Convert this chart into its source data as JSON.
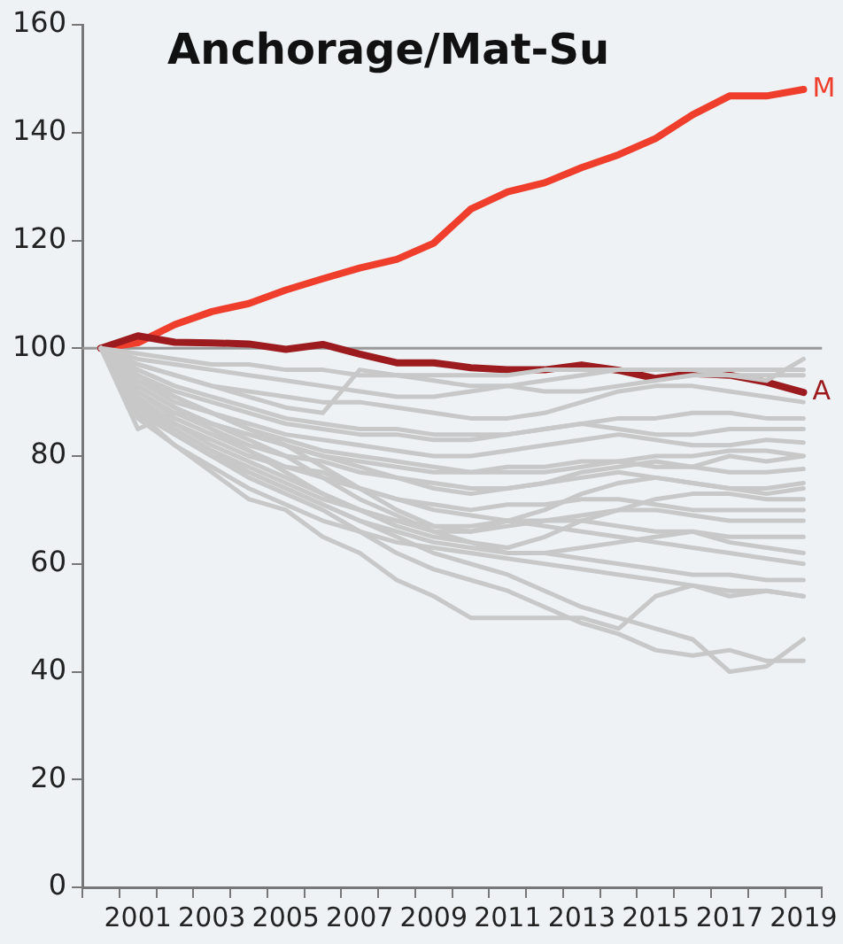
{
  "chart_data": {
    "type": "line",
    "title": "Anchorage/Mat-Su",
    "categories": [
      null,
      "2001",
      null,
      "2003",
      null,
      "2005",
      null,
      "2007",
      null,
      "2009",
      null,
      "2011",
      null,
      "2013",
      null,
      "2015",
      null,
      "2017",
      null,
      "2019"
    ],
    "ylim": [
      0,
      160
    ],
    "yticks": [
      0,
      20,
      40,
      60,
      80,
      100,
      120,
      140,
      160
    ],
    "grid": false,
    "legend": false,
    "marker": "none",
    "ref_lines": [
      {
        "axis": "y",
        "value": 100,
        "color": "#999999"
      }
    ],
    "series": [
      {
        "color": "#c8c8c8",
        "values": [
          100,
          98,
          97,
          96,
          95,
          94,
          93,
          92,
          91,
          91,
          92,
          93,
          94,
          95,
          96,
          96,
          96,
          95,
          94,
          98
        ]
      },
      {
        "color": "#c8c8c8",
        "values": [
          100,
          99,
          98,
          97,
          97,
          96,
          96,
          95,
          95,
          95,
          95,
          95,
          96,
          96,
          96,
          96,
          96,
          96,
          96,
          96
        ]
      },
      {
        "color": "#c8c8c8",
        "values": [
          100,
          97,
          95,
          93,
          91,
          89,
          88,
          96,
          95,
          94,
          93,
          93,
          92,
          92,
          93,
          94,
          95,
          95,
          95,
          95
        ]
      },
      {
        "color": "#c8c8c8",
        "values": [
          100,
          97,
          95,
          93,
          92,
          91,
          90,
          90,
          89,
          88,
          87,
          87,
          88,
          90,
          92,
          93,
          93,
          92,
          91,
          90
        ]
      },
      {
        "color": "#c8c8c8",
        "values": [
          100,
          95,
          92,
          90,
          88,
          86,
          85,
          84,
          84,
          83,
          83,
          84,
          85,
          86,
          85,
          84,
          84,
          85,
          85,
          85
        ]
      },
      {
        "color": "#c8c8c8",
        "values": [
          100,
          94,
          90,
          88,
          86,
          84,
          83,
          82,
          81,
          80,
          80,
          81,
          82,
          83,
          84,
          83,
          82,
          82,
          83,
          82.5
        ]
      },
      {
        "color": "#c8c8c8",
        "values": [
          100,
          93,
          89,
          86,
          84,
          82,
          80,
          79,
          78,
          77,
          77,
          78,
          78,
          79,
          79,
          78,
          78,
          77,
          77,
          77.6
        ]
      },
      {
        "color": "#c8c8c8",
        "values": [
          100,
          92,
          88,
          85,
          82,
          80,
          79,
          77,
          76,
          75,
          74,
          74,
          75,
          76,
          77,
          76,
          75,
          74,
          74,
          75
        ]
      },
      {
        "color": "#c8c8c8",
        "values": [
          100,
          94,
          91,
          88,
          85,
          82,
          78,
          74,
          70,
          67,
          66,
          68,
          70,
          73,
          75,
          76,
          75,
          74,
          73,
          74
        ]
      },
      {
        "color": "#c8c8c8",
        "values": [
          100,
          91,
          86,
          83,
          80,
          78,
          76,
          74,
          72,
          71,
          70,
          71,
          71,
          72,
          72,
          71,
          70,
          70,
          70,
          70
        ]
      },
      {
        "color": "#c8c8c8",
        "values": [
          100,
          90,
          86,
          82,
          79,
          76,
          73,
          70,
          68,
          66,
          66,
          67,
          68,
          69,
          70,
          70,
          69,
          68,
          68,
          68
        ]
      },
      {
        "color": "#c8c8c8",
        "values": [
          100,
          89,
          85,
          81,
          78,
          75,
          72,
          70,
          68,
          67,
          67,
          68,
          68,
          68,
          67,
          66,
          66,
          65,
          65,
          65
        ]
      },
      {
        "color": "#c8c8c8",
        "values": [
          100,
          92,
          87,
          84,
          81,
          78,
          77,
          74,
          72,
          70,
          69,
          68,
          67,
          66,
          65,
          64,
          63,
          62,
          61,
          60
        ]
      },
      {
        "color": "#c8c8c8",
        "values": [
          100,
          88,
          84,
          80,
          77,
          74,
          71,
          68,
          66,
          64,
          63,
          62,
          62,
          61,
          60,
          59,
          58,
          58,
          57,
          57
        ]
      },
      {
        "color": "#c8c8c8",
        "values": [
          100,
          87,
          82,
          78,
          74,
          71,
          68,
          66,
          64,
          63,
          62,
          61,
          60,
          59,
          58,
          57,
          56,
          55,
          55,
          54
        ]
      },
      {
        "color": "#c8c8c8",
        "values": [
          100,
          90,
          85,
          81,
          77,
          74,
          71,
          68,
          65,
          62,
          60,
          58,
          55,
          52,
          50,
          48,
          46,
          40,
          41,
          46
        ]
      },
      {
        "color": "#c8c8c8",
        "values": [
          100,
          89,
          84,
          80,
          76,
          73,
          70,
          66,
          62,
          59,
          57,
          55,
          52,
          49,
          47,
          44,
          43,
          44,
          42,
          42
        ]
      },
      {
        "color": "#c8c8c8",
        "values": [
          100,
          88,
          82,
          77,
          72,
          70,
          65,
          62,
          57,
          54,
          50,
          50,
          50,
          50,
          48,
          54,
          56,
          54,
          55,
          54
        ]
      },
      {
        "color": "#c8c8c8",
        "values": [
          100,
          85,
          88,
          86,
          84,
          82,
          80,
          78,
          76,
          74,
          73,
          74,
          75,
          77,
          78,
          79,
          78,
          80,
          79,
          80
        ]
      },
      {
        "color": "#c8c8c8",
        "values": [
          100,
          93,
          89,
          86,
          83,
          80,
          76,
          72,
          69,
          66,
          64,
          62,
          62,
          63,
          64,
          65,
          66,
          64,
          63,
          62
        ]
      },
      {
        "color": "#c8c8c8",
        "values": [
          100,
          96,
          93,
          91,
          89,
          87,
          86,
          85,
          85,
          84,
          84,
          84,
          85,
          86,
          87,
          87,
          88,
          88,
          87,
          87
        ]
      },
      {
        "color": "#c8c8c8",
        "values": [
          100,
          95,
          91,
          88,
          85,
          83,
          81,
          80,
          79,
          78,
          77,
          77,
          77,
          78,
          79,
          80,
          80,
          81,
          81,
          80
        ]
      },
      {
        "color": "#c8c8c8",
        "values": [
          100,
          93,
          89,
          85,
          81,
          77,
          73,
          70,
          67,
          65,
          64,
          63,
          65,
          68,
          70,
          72,
          73,
          73,
          72,
          72
        ]
      },
      {
        "name": "A",
        "color": "#9b1b1f",
        "values": [
          100,
          102.3,
          101.1,
          101,
          100.8,
          99.8,
          100.7,
          98.9,
          97.3,
          97.3,
          96.4,
          96,
          96,
          96.9,
          95.9,
          94.4,
          95.3,
          95,
          93.7,
          91.8
        ]
      },
      {
        "name": "M",
        "color": "#ef3e2c",
        "values": [
          100,
          101,
          104.4,
          106.8,
          108.3,
          110.8,
          112.9,
          114.9,
          116.5,
          119.5,
          125.8,
          129,
          130.7,
          133.5,
          135.9,
          138.9,
          143.3,
          146.8,
          146.8,
          148
        ]
      }
    ]
  }
}
